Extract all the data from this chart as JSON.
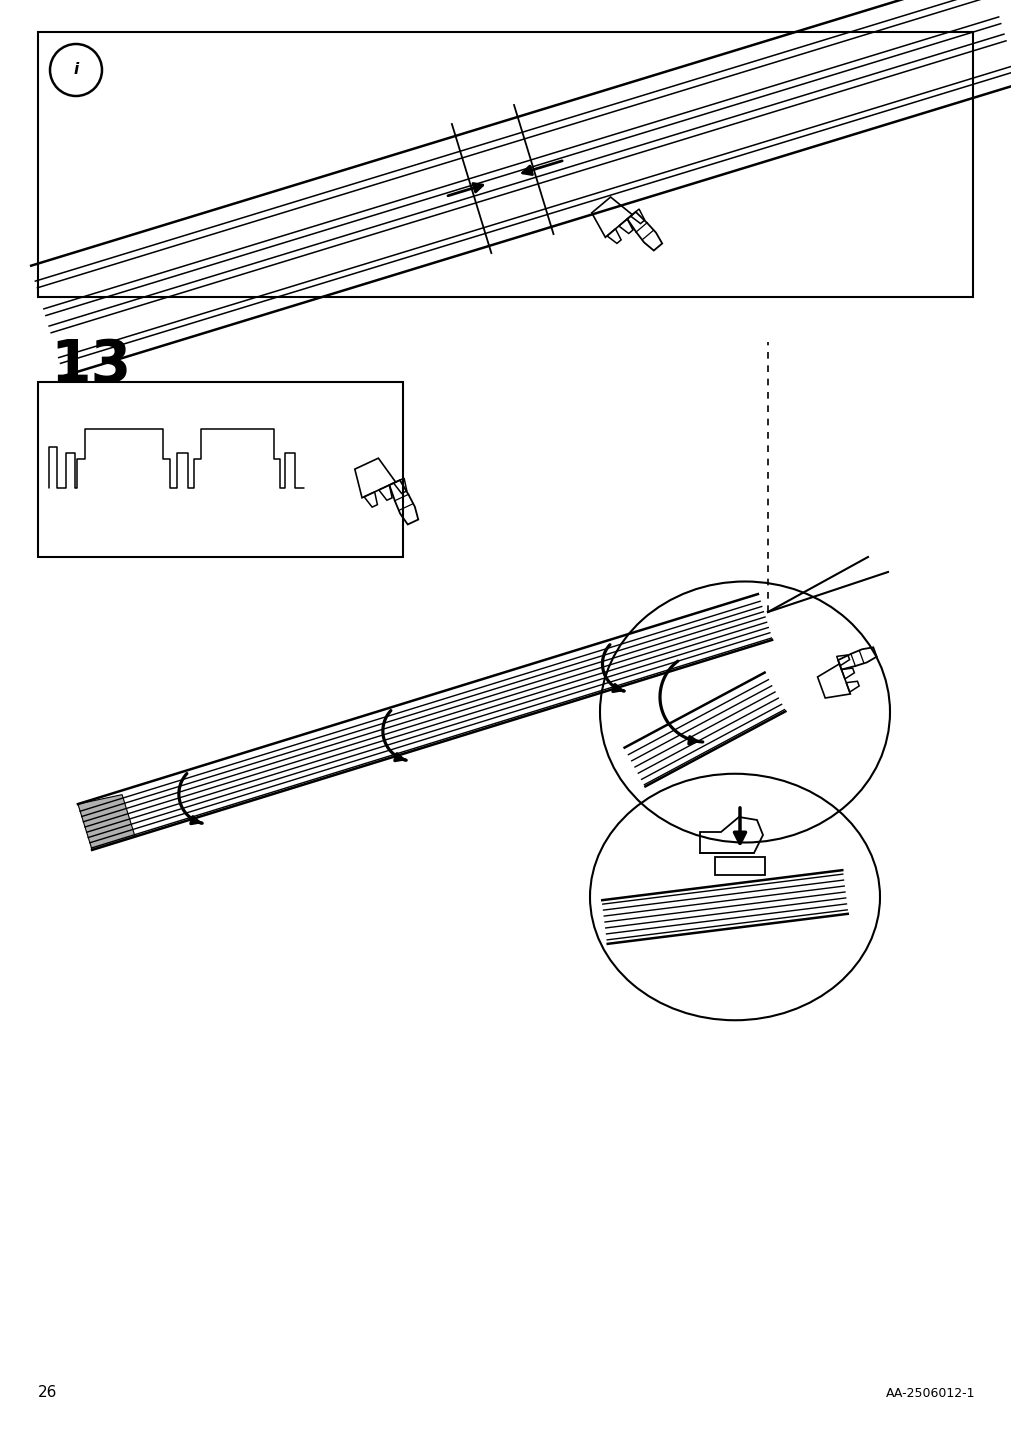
{
  "page_number": "26",
  "doc_code": "AA-2506012-1",
  "step_number": "13",
  "background_color": "#ffffff",
  "line_color": "#000000",
  "page_width": 10.12,
  "page_height": 14.32
}
